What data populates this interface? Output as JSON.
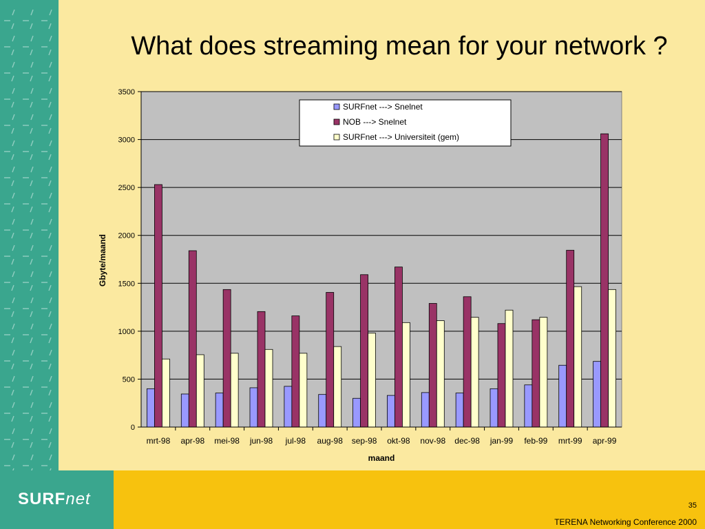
{
  "slide": {
    "title": "What does streaming mean for your network ?",
    "page_number": "35",
    "footer": "TERENA Networking Conference 2000",
    "logo_text": "SURF",
    "logo_text_2": "net"
  },
  "colors": {
    "background": "#fbe9a0",
    "sidebar": "#3aa68e",
    "footer_band": "#f7c20e",
    "plot_area": "#c0c0c0"
  },
  "chart_data": {
    "type": "bar",
    "title": "",
    "xlabel": "maand",
    "ylabel": "Gbyte/maand",
    "ylim": [
      0,
      3500
    ],
    "yticks": [
      0,
      500,
      1000,
      1500,
      2000,
      2500,
      3000,
      3500
    ],
    "grid": true,
    "legend_position": "top-right",
    "categories": [
      "mrt-98",
      "apr-98",
      "mei-98",
      "jun-98",
      "jul-98",
      "aug-98",
      "sep-98",
      "okt-98",
      "nov-98",
      "dec-98",
      "jan-99",
      "feb-99",
      "mrt-99",
      "apr-99"
    ],
    "series": [
      {
        "name": "SURFnet ---> Snelnet",
        "color": "#9999ff",
        "values": [
          400,
          345,
          355,
          410,
          425,
          340,
          300,
          330,
          360,
          355,
          400,
          440,
          645,
          685
        ]
      },
      {
        "name": "NOB ---> Snelnet",
        "color": "#993366",
        "values": [
          2530,
          1840,
          1435,
          1205,
          1160,
          1405,
          1590,
          1670,
          1290,
          1360,
          1080,
          1120,
          1845,
          3060
        ]
      },
      {
        "name": "SURFnet --->  Universiteit (gem)",
        "color": "#ffffcc",
        "values": [
          710,
          755,
          770,
          810,
          770,
          840,
          980,
          1090,
          1110,
          1145,
          1220,
          1145,
          1465,
          1435
        ]
      }
    ]
  }
}
